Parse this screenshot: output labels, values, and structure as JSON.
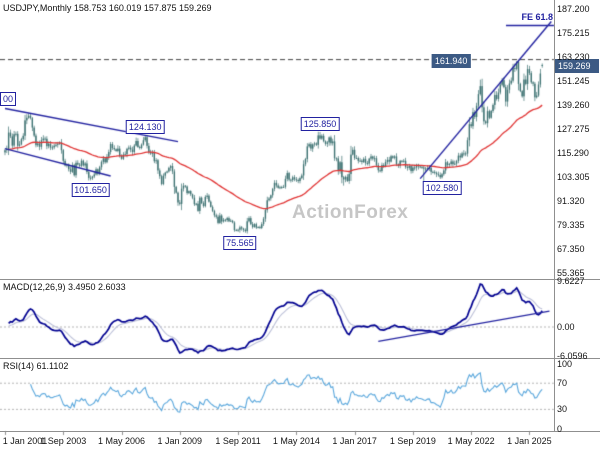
{
  "header": {
    "title": "USDJPY,Monthly 158.753 160.019 157.875 159.269"
  },
  "watermark": "ActionForex",
  "colors": {
    "background": "#ffffff",
    "candle": "#3f7373",
    "ma": "#e03333",
    "trendline": "#2222a0",
    "macd_main": "#000090",
    "macd_signal": "#bcc0d8",
    "rsi": "#5aa7dc",
    "tag_fill": "#3c5a84",
    "watermark_color": "#c6c6c6",
    "axis_text": "#141414",
    "separator": "#8f8f8f",
    "levels": "#b4b4b4",
    "dashed_line": "#404040"
  },
  "main_chart": {
    "y_ticks": [
      "187.200",
      "175.215",
      "163.230",
      "151.245",
      "139.260",
      "127.275",
      "115.290",
      "103.305",
      "91.320",
      "79.335",
      "67.350",
      "55.365"
    ],
    "y_tick_values": [
      187.2,
      175.215,
      163.23,
      151.245,
      139.26,
      127.275,
      115.29,
      103.305,
      91.32,
      79.335,
      67.35,
      55.365
    ],
    "price_range": [
      52.4,
      191.7
    ],
    "current_price": 159.269,
    "current_price_label": "159.269",
    "high_line": {
      "price": 161.94,
      "label": "161.940",
      "label_month": 245
    },
    "fe_line": {
      "label": "FE 61.8",
      "price": 179.0
    },
    "left_edge_label": "00",
    "price_tags": [
      {
        "label": "124.130",
        "month": 77,
        "price": 124.13,
        "side": "above"
      },
      {
        "label": "101.650",
        "month": 47,
        "price": 101.65,
        "side": "below"
      },
      {
        "label": "125.850",
        "month": 173,
        "price": 125.85,
        "side": "above"
      },
      {
        "label": "75.565",
        "month": 129,
        "price": 75.565,
        "side": "below"
      },
      {
        "label": "102.580",
        "month": 240,
        "price": 102.58,
        "side": "below"
      }
    ],
    "trendlines": [
      {
        "m1": 0,
        "p1": 137.5,
        "m2": 95,
        "p2": 121.0
      },
      {
        "m1": 0,
        "p1": 117.5,
        "m2": 58,
        "p2": 103.8
      },
      {
        "m1": 228,
        "p1": 102.5,
        "m2": 300,
        "p2": 181.0
      }
    ]
  },
  "macd": {
    "title": "MACD(12,26,9) 3.4950 2.6033",
    "current_values": [
      3.495,
      2.6033
    ],
    "y_ticks": [
      "9.6227",
      "0.00",
      "-6.0596"
    ],
    "y_tick_values": [
      9.6227,
      0,
      -6.0596
    ],
    "trendline": {
      "m1": 205,
      "v1": -3.0,
      "m2": 299,
      "v2": 3.3
    }
  },
  "rsi": {
    "title": "RSI(14) 61.1102",
    "current_value": 61.1102,
    "y_ticks": [
      "100",
      "70",
      "30",
      "0"
    ],
    "y_tick_values": [
      100,
      70,
      30,
      0
    ],
    "levels": [
      70,
      30
    ]
  },
  "time_axis": {
    "labels": [
      "1 Jan 2001",
      "1 Sep 2003",
      "1 May 2006",
      "1 Jan 2009",
      "1 Sep 2011",
      "1 May 2014",
      "1 Jan 2017",
      "1 Sep 2019",
      "1 May 2022",
      "1 Jan 2025"
    ],
    "months": [
      0,
      32,
      64,
      96,
      128,
      160,
      192,
      224,
      256,
      288
    ]
  },
  "chart_data": {
    "type": "candlestick",
    "symbol": "USDJPY",
    "timeframe": "Monthly",
    "title": "USDJPY,Monthly",
    "start": "Jan 2001",
    "interval": "1 month",
    "ylim": [
      52.4,
      191.7
    ],
    "ohlc_current": {
      "open": 158.753,
      "high": 160.019,
      "low": 157.875,
      "close": 159.269
    },
    "indicators": {
      "ma": {
        "type": "EMA",
        "period": 55
      },
      "macd": [
        12,
        26,
        9
      ],
      "rsi": 14
    },
    "close": [
      116.7,
      117.4,
      125.5,
      123.6,
      119.0,
      124.7,
      124.9,
      118.9,
      119.6,
      122.2,
      123.9,
      131.6,
      132.9,
      133.9,
      132.7,
      128.0,
      124.0,
      119.2,
      120.0,
      118.4,
      121.7,
      122.5,
      122.4,
      118.7,
      119.9,
      118.0,
      118.1,
      119.0,
      119.4,
      119.9,
      120.6,
      116.7,
      111.4,
      109.0,
      109.6,
      107.2,
      105.9,
      109.3,
      104.2,
      110.4,
      109.5,
      108.9,
      111.5,
      109.1,
      110.1,
      105.8,
      102.9,
      102.7,
      103.6,
      104.6,
      107.2,
      104.8,
      108.2,
      110.9,
      112.6,
      110.7,
      113.5,
      115.8,
      119.8,
      117.8,
      117.2,
      116.3,
      117.5,
      113.8,
      112.4,
      114.5,
      114.7,
      117.4,
      118.0,
      117.0,
      115.8,
      119.0,
      121.3,
      118.3,
      117.8,
      119.5,
      121.7,
      123.2,
      118.9,
      115.8,
      115.0,
      115.4,
      111.2,
      111.7,
      106.6,
      103.7,
      99.8,
      104.0,
      105.5,
      106.1,
      107.9,
      108.8,
      106.1,
      98.4,
      95.5,
      90.6,
      89.9,
      97.5,
      99.0,
      98.6,
      95.3,
      96.3,
      94.7,
      93.0,
      89.7,
      90.0,
      86.4,
      93.0,
      90.3,
      88.8,
      93.4,
      94.0,
      91.0,
      88.4,
      86.4,
      84.2,
      83.5,
      80.4,
      84.1,
      81.1,
      82.0,
      81.8,
      82.8,
      81.2,
      81.5,
      80.6,
      76.8,
      76.7,
      77.0,
      78.2,
      77.6,
      76.9,
      76.3,
      81.2,
      82.8,
      79.8,
      78.3,
      79.8,
      78.1,
      78.4,
      77.9,
      79.8,
      82.5,
      86.8,
      91.7,
      92.6,
      94.2,
      97.4,
      100.4,
      99.1,
      97.9,
      98.2,
      98.3,
      98.4,
      102.4,
      105.3,
      102.0,
      101.8,
      103.2,
      102.2,
      101.8,
      101.3,
      102.8,
      104.1,
      109.7,
      112.3,
      118.6,
      119.7,
      117.5,
      119.6,
      120.1,
      119.4,
      124.1,
      122.5,
      123.9,
      121.2,
      119.9,
      120.6,
      123.1,
      120.2,
      121.1,
      112.7,
      112.6,
      106.5,
      110.7,
      103.2,
      102.1,
      103.4,
      101.3,
      104.8,
      114.5,
      116.9,
      112.8,
      112.8,
      111.4,
      111.5,
      110.8,
      112.4,
      110.3,
      110.0,
      112.5,
      113.6,
      112.5,
      112.7,
      109.2,
      106.7,
      106.3,
      109.3,
      108.8,
      110.8,
      111.9,
      111.0,
      113.7,
      112.9,
      113.6,
      109.7,
      108.9,
      111.4,
      110.9,
      111.4,
      108.3,
      107.9,
      108.8,
      106.3,
      108.1,
      108.0,
      109.5,
      108.6,
      108.4,
      108.1,
      107.5,
      107.2,
      107.8,
      107.9,
      105.9,
      105.9,
      105.5,
      104.7,
      104.3,
      103.2,
      104.7,
      106.6,
      110.7,
      109.3,
      109.8,
      111.1,
      109.7,
      110.0,
      111.3,
      114.0,
      113.1,
      115.1,
      115.1,
      115.0,
      121.7,
      129.7,
      128.7,
      135.7,
      133.3,
      138.9,
      144.7,
      148.7,
      138.1,
      131.1,
      130.2,
      136.2,
      132.9,
      136.3,
      139.3,
      144.3,
      142.3,
      145.5,
      149.4,
      151.7,
      148.2,
      141.0,
      146.9,
      150.0,
      151.4,
      157.8,
      157.3,
      160.9,
      149.8,
      146.2,
      143.6,
      152.0,
      149.8,
      157.2,
      155.2,
      150.6,
      149.9,
      143.1,
      144.0,
      149.5,
      155.0,
      159.269
    ],
    "extremes": [
      {
        "i": 13,
        "high": 135.0
      },
      {
        "i": 47,
        "low": 101.65
      },
      {
        "i": 77,
        "high": 124.13
      },
      {
        "i": 129,
        "low": 75.565
      },
      {
        "i": 173,
        "high": 125.85
      },
      {
        "i": 186,
        "low": 99.02
      },
      {
        "i": 230,
        "low": 101.18
      },
      {
        "i": 240,
        "low": 102.58
      },
      {
        "i": 261,
        "high": 151.94
      },
      {
        "i": 282,
        "high": 161.94
      },
      {
        "i": 295,
        "open": 158.753,
        "high": 160.019,
        "low": 157.875
      }
    ]
  }
}
